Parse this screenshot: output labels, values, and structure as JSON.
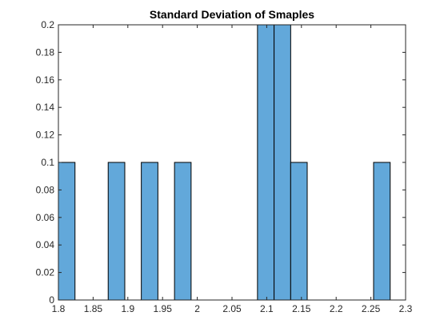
{
  "chart_data": {
    "type": "bar",
    "title": "Standard Deviation of Smaples",
    "xlabel": "",
    "ylabel": "",
    "xlim": [
      1.8,
      2.3
    ],
    "ylim": [
      0,
      0.2
    ],
    "xticks": [
      "1.8",
      "1.85",
      "1.9",
      "1.95",
      "2",
      "2.05",
      "2.1",
      "2.15",
      "2.2",
      "2.25",
      "2.3"
    ],
    "yticks": [
      "0",
      "0.02",
      "0.04",
      "0.06",
      "0.08",
      "0.1",
      "0.12",
      "0.14",
      "0.16",
      "0.18",
      "0.2"
    ],
    "bins": [
      {
        "start": 1.8,
        "end": 1.8239,
        "value": 0.1
      },
      {
        "start": 1.8717,
        "end": 1.8956,
        "value": 0.1
      },
      {
        "start": 1.9194,
        "end": 1.9433,
        "value": 0.1
      },
      {
        "start": 1.9672,
        "end": 1.9911,
        "value": 0.1
      },
      {
        "start": 2.0867,
        "end": 2.1106,
        "value": 0.2
      },
      {
        "start": 2.1106,
        "end": 2.1345,
        "value": 0.2
      },
      {
        "start": 2.1345,
        "end": 2.1583,
        "value": 0.1
      },
      {
        "start": 2.2539,
        "end": 2.2778,
        "value": 0.1
      }
    ],
    "bar_color": "#62A8DA",
    "edge_color": "#000000",
    "grid": false
  }
}
